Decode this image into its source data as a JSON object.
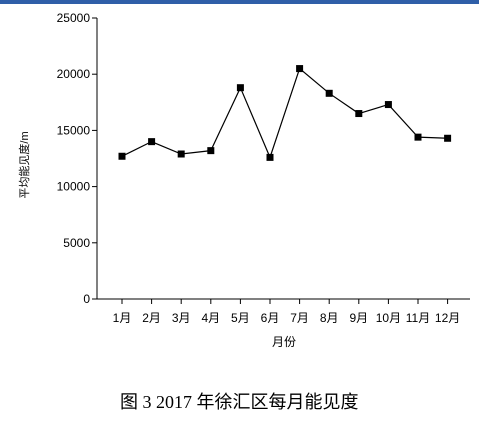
{
  "chart_data": {
    "type": "line",
    "caption": "图 3   2017 年徐汇区每月能见度",
    "xlabel": "月份",
    "ylabel": "平均能见度/m",
    "categories": [
      "1月",
      "2月",
      "3月",
      "4月",
      "5月",
      "6月",
      "7月",
      "8月",
      "9月",
      "10月",
      "11月",
      "12月"
    ],
    "series": [
      {
        "name": "平均能见度",
        "color": "#000000",
        "values": [
          12700,
          14000,
          12900,
          13200,
          18800,
          12600,
          20500,
          18300,
          16500,
          17300,
          14400,
          14300
        ]
      }
    ],
    "ylim": [
      0,
      25000
    ],
    "yticks": [
      0,
      5000,
      10000,
      15000,
      20000,
      25000
    ],
    "grid": false
  }
}
